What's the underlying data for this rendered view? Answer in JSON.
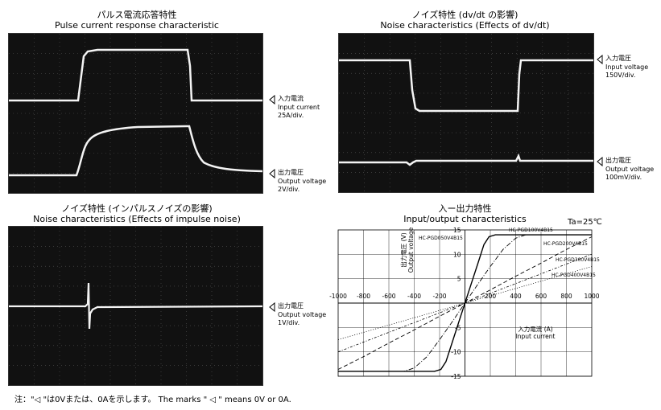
{
  "scopes": {
    "pulse": {
      "title_ja": "パルス電流応答特性",
      "title_en": "Pulse current response characteristic",
      "ch1": {
        "ja": "入力電流",
        "en": "Input current",
        "scale": "25A/div."
      },
      "ch2": {
        "ja": "出力電圧",
        "en": "Output voltage",
        "scale": "2V/div."
      }
    },
    "noise_dvdt": {
      "title_ja": "ノイズ特性 (dv/dt の影響)",
      "title_en": "Noise characteristics (Effects of dv/dt)",
      "ch1": {
        "ja": "入力電圧",
        "en": "Input voltage",
        "scale": "150V/div."
      },
      "ch2": {
        "ja": "出力電圧",
        "en": "Output voltage",
        "scale": "100mV/div."
      }
    },
    "noise_impulse": {
      "title_ja": "ノイズ特性 (インパルスノイズの影響)",
      "title_en": "Noise characteristics (Effects of impulse noise)",
      "ch1": {
        "ja": "出力電圧",
        "en": "Output voltage",
        "scale": "1V/div."
      }
    }
  },
  "io": {
    "title_ja": "入ー出力特性",
    "title_en": "Input/output characteristics",
    "ta": "Ta=25℃",
    "ylabel_ja": "出力電圧 (V)",
    "ylabel_en": "Output voltage",
    "xlabel_ja": "入力電流 (A)",
    "xlabel_en": "Input current"
  },
  "note": "注：\"◁ \"は0Vまたは、0Aを示します。 The marks \" ◁ \" means 0V or 0A.",
  "chart_data": {
    "type": "line",
    "title": "入ー出力特性 / Input/output characteristics",
    "xlabel": "入力電流 (A) Input current",
    "ylabel": "出力電圧 (V) Output voltage",
    "xlim": [
      -1000,
      1000
    ],
    "ylim": [
      -15,
      15
    ],
    "xticks": [
      -1000,
      -800,
      -600,
      -400,
      -200,
      0,
      200,
      400,
      600,
      800,
      1000
    ],
    "yticks": [
      -15,
      -10,
      -5,
      5,
      10,
      15
    ],
    "grid": true,
    "series": [
      {
        "name": "HC-PGD050V4B15",
        "dash": "solid",
        "x": [
          -1000,
          -240,
          -190,
          -150,
          -100,
          -50,
          0,
          50,
          100,
          150,
          190,
          240,
          1000
        ],
        "y": [
          -14,
          -14,
          -13.6,
          -12,
          -8,
          -4,
          0,
          4,
          8,
          12,
          13.6,
          14,
          14
        ]
      },
      {
        "name": "HC-PGD100V4B15",
        "dash": "dashdot",
        "x": [
          -1000,
          -480,
          -400,
          -300,
          -200,
          -100,
          0,
          100,
          200,
          300,
          400,
          480,
          1000
        ],
        "y": [
          -14,
          -14,
          -13.3,
          -11,
          -7.5,
          -3.8,
          0,
          3.8,
          7.5,
          11,
          13.3,
          14,
          14
        ]
      },
      {
        "name": "HC-PGD200V4B15",
        "dash": "dashed",
        "x": [
          -1000,
          -800,
          -600,
          -400,
          -200,
          0,
          200,
          400,
          600,
          800,
          1000
        ],
        "y": [
          -13.6,
          -11,
          -8.2,
          -5.5,
          -2.7,
          0,
          2.7,
          5.5,
          8.2,
          11,
          13.6
        ]
      },
      {
        "name": "HC-PGD300V4B15",
        "dash": "dashdot-dense",
        "x": [
          -1000,
          -500,
          0,
          500,
          1000
        ],
        "y": [
          -10,
          -5,
          0,
          5,
          10
        ]
      },
      {
        "name": "HC-PGD400V4B15",
        "dash": "dotted",
        "x": [
          -1000,
          -500,
          0,
          500,
          1000
        ],
        "y": [
          -7.5,
          -3.75,
          0,
          3.75,
          7.5
        ]
      }
    ]
  }
}
